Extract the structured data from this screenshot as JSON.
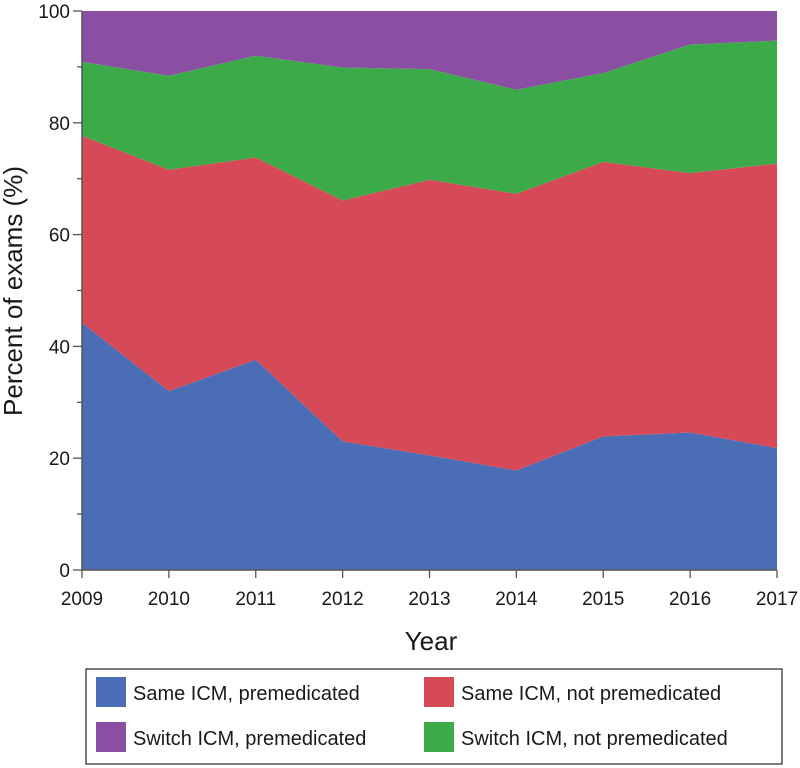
{
  "chart_data": {
    "type": "area",
    "stacked": true,
    "x": [
      "2009",
      "2010",
      "2011",
      "2012",
      "2013",
      "2014",
      "2015",
      "2016",
      "2017"
    ],
    "series": [
      {
        "name": "Same ICM, premedicated",
        "color": "#4a6db5",
        "values": [
          44.2,
          32.0,
          37.6,
          23.0,
          20.5,
          17.8,
          23.9,
          24.6,
          21.8
        ]
      },
      {
        "name": "Same ICM, not premedicated",
        "color": "#d64a57",
        "values": [
          33.5,
          39.6,
          36.2,
          43.1,
          49.3,
          49.5,
          49.1,
          46.4,
          50.9
        ]
      },
      {
        "name": "Switch ICM, not premedicated",
        "color": "#3daa4a",
        "values": [
          13.2,
          16.8,
          18.2,
          23.8,
          19.8,
          18.6,
          15.9,
          23.0,
          22.0
        ]
      },
      {
        "name": "Switch ICM, premedicated",
        "color": "#8a4fa3",
        "values": [
          9.1,
          11.6,
          8.0,
          10.1,
          10.4,
          14.1,
          11.1,
          6.0,
          5.3
        ]
      }
    ],
    "ylim": [
      0,
      100
    ],
    "yticks": [
      "0",
      "20",
      "40",
      "60",
      "80",
      "100"
    ],
    "xlabel": "Year",
    "ylabel": "Percent of exams (%)",
    "grid": false,
    "legend_position": "bottom",
    "legend_order": [
      "Same ICM, premedicated",
      "Same ICM, not premedicated",
      "Switch ICM, premedicated",
      "Switch ICM, not premedicated"
    ]
  }
}
